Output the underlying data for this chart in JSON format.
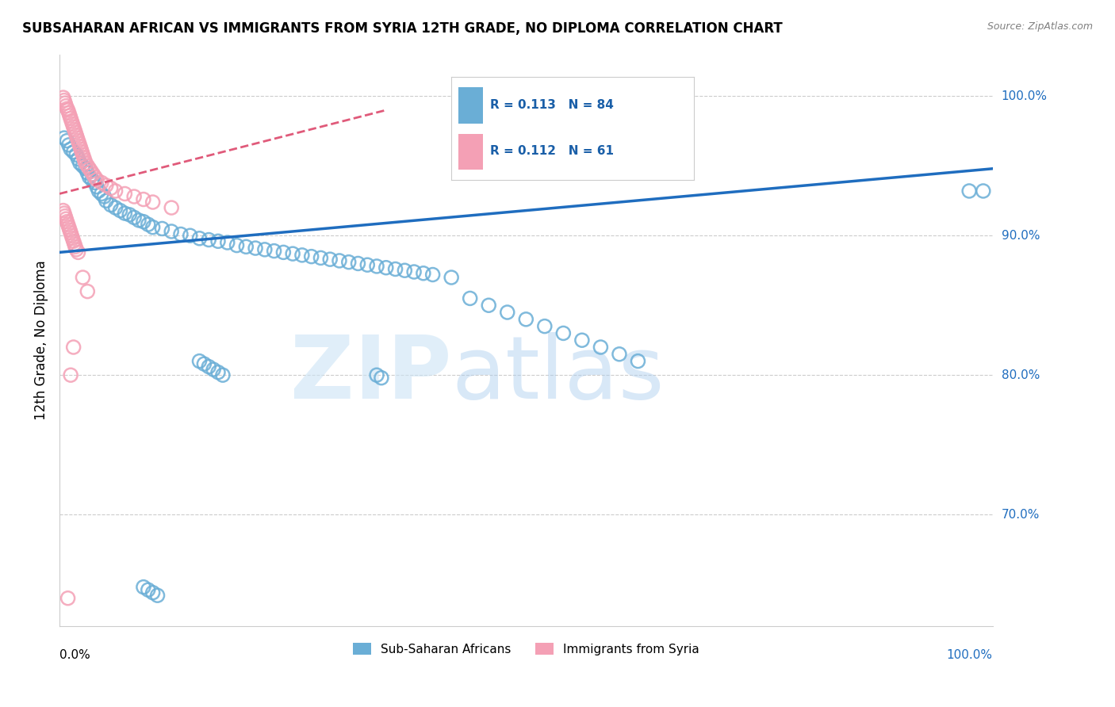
{
  "title": "SUBSAHARAN AFRICAN VS IMMIGRANTS FROM SYRIA 12TH GRADE, NO DIPLOMA CORRELATION CHART",
  "source": "Source: ZipAtlas.com",
  "ylabel": "12th Grade, No Diploma",
  "ytick_values": [
    1.0,
    0.9,
    0.8,
    0.7
  ],
  "ytick_labels": [
    "100.0%",
    "90.0%",
    "80.0%",
    "70.0%"
  ],
  "xlim": [
    0.0,
    1.0
  ],
  "ylim": [
    0.62,
    1.03
  ],
  "blue_R": 0.113,
  "blue_N": 84,
  "pink_R": 0.112,
  "pink_N": 61,
  "blue_color": "#6aaed6",
  "pink_color": "#f4a0b5",
  "blue_line_color": "#1f6dbf",
  "pink_line_color": "#e05a7a",
  "legend_text_color": "#1a5fa8",
  "blue_scatter_x": [
    0.005,
    0.008,
    0.01,
    0.012,
    0.015,
    0.018,
    0.02,
    0.022,
    0.025,
    0.028,
    0.03,
    0.032,
    0.035,
    0.038,
    0.04,
    0.042,
    0.045,
    0.048,
    0.05,
    0.055,
    0.06,
    0.065,
    0.07,
    0.075,
    0.08,
    0.085,
    0.09,
    0.095,
    0.1,
    0.11,
    0.12,
    0.13,
    0.14,
    0.15,
    0.16,
    0.17,
    0.18,
    0.19,
    0.2,
    0.21,
    0.22,
    0.23,
    0.24,
    0.25,
    0.26,
    0.27,
    0.28,
    0.29,
    0.3,
    0.31,
    0.32,
    0.33,
    0.34,
    0.35,
    0.36,
    0.37,
    0.38,
    0.39,
    0.4,
    0.42,
    0.44,
    0.46,
    0.48,
    0.5,
    0.52,
    0.54,
    0.56,
    0.58,
    0.6,
    0.62,
    0.34,
    0.345,
    0.975,
    0.99,
    0.15,
    0.155,
    0.16,
    0.165,
    0.17,
    0.175,
    0.09,
    0.095,
    0.1,
    0.105
  ],
  "blue_scatter_y": [
    0.97,
    0.968,
    0.965,
    0.962,
    0.96,
    0.958,
    0.955,
    0.952,
    0.95,
    0.948,
    0.945,
    0.942,
    0.94,
    0.938,
    0.935,
    0.932,
    0.93,
    0.928,
    0.925,
    0.922,
    0.92,
    0.918,
    0.916,
    0.915,
    0.913,
    0.911,
    0.91,
    0.908,
    0.906,
    0.905,
    0.903,
    0.901,
    0.9,
    0.898,
    0.897,
    0.896,
    0.895,
    0.893,
    0.892,
    0.891,
    0.89,
    0.889,
    0.888,
    0.887,
    0.886,
    0.885,
    0.884,
    0.883,
    0.882,
    0.881,
    0.88,
    0.879,
    0.878,
    0.877,
    0.876,
    0.875,
    0.874,
    0.873,
    0.872,
    0.87,
    0.855,
    0.85,
    0.845,
    0.84,
    0.835,
    0.83,
    0.825,
    0.82,
    0.815,
    0.81,
    0.8,
    0.798,
    0.932,
    0.932,
    0.81,
    0.808,
    0.806,
    0.804,
    0.802,
    0.8,
    0.648,
    0.646,
    0.644,
    0.642
  ],
  "pink_scatter_x": [
    0.004,
    0.005,
    0.006,
    0.007,
    0.008,
    0.009,
    0.01,
    0.011,
    0.012,
    0.013,
    0.014,
    0.015,
    0.016,
    0.017,
    0.018,
    0.019,
    0.02,
    0.021,
    0.022,
    0.023,
    0.024,
    0.025,
    0.026,
    0.027,
    0.028,
    0.03,
    0.032,
    0.034,
    0.036,
    0.038,
    0.04,
    0.045,
    0.05,
    0.055,
    0.06,
    0.07,
    0.08,
    0.09,
    0.1,
    0.12,
    0.004,
    0.005,
    0.006,
    0.007,
    0.008,
    0.009,
    0.01,
    0.011,
    0.012,
    0.013,
    0.014,
    0.015,
    0.016,
    0.017,
    0.018,
    0.02,
    0.025,
    0.03,
    0.015,
    0.012,
    0.009
  ],
  "pink_scatter_y": [
    0.999,
    0.997,
    0.995,
    0.993,
    0.991,
    0.99,
    0.988,
    0.986,
    0.984,
    0.982,
    0.98,
    0.978,
    0.976,
    0.974,
    0.972,
    0.97,
    0.968,
    0.966,
    0.964,
    0.962,
    0.96,
    0.958,
    0.956,
    0.954,
    0.952,
    0.95,
    0.948,
    0.946,
    0.944,
    0.942,
    0.94,
    0.938,
    0.936,
    0.934,
    0.932,
    0.93,
    0.928,
    0.926,
    0.924,
    0.92,
    0.918,
    0.916,
    0.914,
    0.912,
    0.91,
    0.908,
    0.906,
    0.904,
    0.902,
    0.9,
    0.898,
    0.896,
    0.894,
    0.892,
    0.89,
    0.888,
    0.87,
    0.86,
    0.82,
    0.8,
    0.64
  ],
  "blue_trend_x": [
    0.0,
    1.0
  ],
  "blue_trend_y": [
    0.888,
    0.948
  ],
  "pink_trend_x": [
    0.0,
    0.35
  ],
  "pink_trend_y": [
    0.93,
    0.99
  ]
}
